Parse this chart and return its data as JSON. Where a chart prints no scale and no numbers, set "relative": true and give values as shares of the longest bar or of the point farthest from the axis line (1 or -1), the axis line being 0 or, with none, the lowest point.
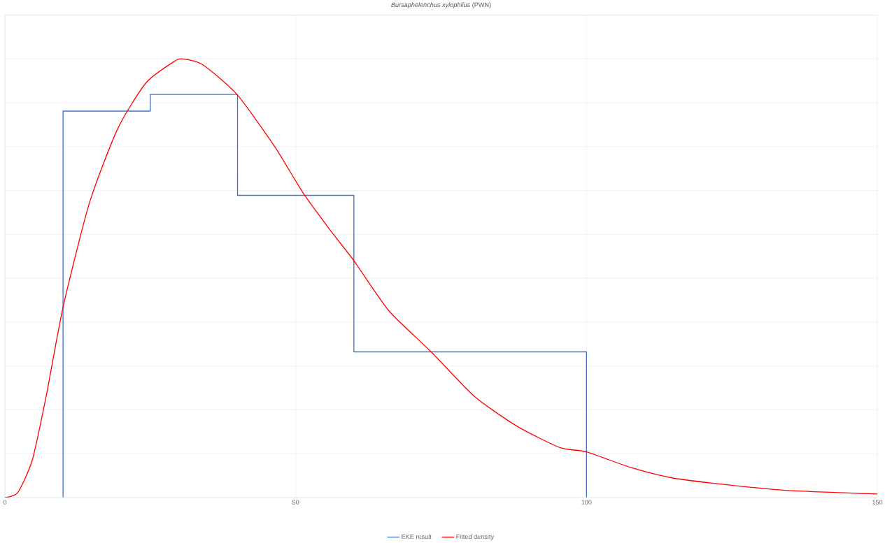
{
  "chart_data": {
    "type": "line",
    "title": "*Bursaphelenchus xylophilus* (PWN)",
    "relative": true,
    "xlim": [
      0,
      150
    ],
    "xticks": [
      0,
      50,
      100,
      150
    ],
    "grid": true,
    "legend": "bottom",
    "series": [
      {
        "name": "EKE result",
        "type": "step",
        "color": "#4472c4",
        "x": [
          10,
          10,
          25,
          40,
          60,
          100,
          100
        ],
        "values": [
          0,
          0.881,
          0.919,
          0.689,
          0.332,
          0.332,
          0
        ]
      },
      {
        "name": "Fitted density",
        "color": "#ff0000",
        "x": [
          0,
          2.2,
          4.7,
          7.1,
          10,
          14.5,
          19.4,
          24.3,
          29.2,
          30.7,
          34,
          39.9,
          46.4,
          51.3,
          56.2,
          60,
          66,
          73.3,
          80.7,
          88,
          95.4,
          100,
          107.7,
          115,
          124.9,
          134.7,
          150
        ],
        "values": [
          0,
          0.011,
          0.085,
          0.231,
          0.434,
          0.67,
          0.841,
          0.946,
          0.995,
          1,
          0.987,
          0.919,
          0.8,
          0.694,
          0.605,
          0.54,
          0.426,
          0.332,
          0.231,
          0.163,
          0.114,
          0.104,
          0.068,
          0.044,
          0.028,
          0.016,
          0.008
        ]
      }
    ]
  }
}
